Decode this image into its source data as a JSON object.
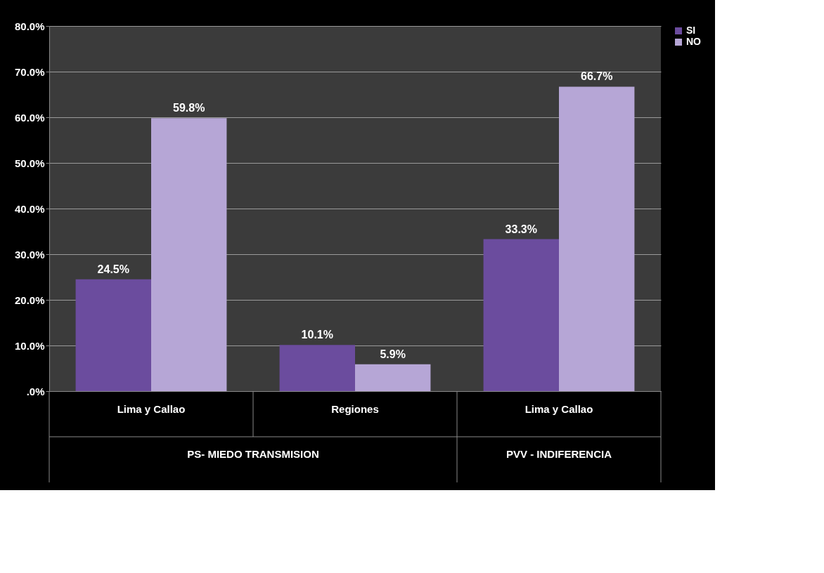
{
  "chart_data": {
    "type": "bar",
    "categories": [
      "Lima y Callao",
      "Regiones",
      "Lima y Callao"
    ],
    "series": [
      {
        "name": "SI",
        "color": "#6b4c9e",
        "values": [
          24.5,
          10.1,
          33.3
        ],
        "value_labels": [
          "24.5%",
          "10.1%",
          "33.3%"
        ]
      },
      {
        "name": "NO",
        "color": "#b6a6d6",
        "values": [
          59.8,
          5.9,
          66.7
        ],
        "value_labels": [
          "59.8%",
          "5.9%",
          "66.7%"
        ]
      }
    ],
    "ylim": [
      0,
      80
    ],
    "yticks": [
      {
        "value": 0,
        "label": ".0%"
      },
      {
        "value": 10,
        "label": "10.0%"
      },
      {
        "value": 20,
        "label": "20.0%"
      },
      {
        "value": 30,
        "label": "30.0%"
      },
      {
        "value": 40,
        "label": "40.0%"
      },
      {
        "value": 50,
        "label": "50.0%"
      },
      {
        "value": 60,
        "label": "60.0%"
      },
      {
        "value": 70,
        "label": "70.0%"
      },
      {
        "value": 80,
        "label": "80.0%"
      }
    ],
    "annotations": [
      "PS- MIEDO TRANSMISION",
      "PVV - INDIFERENCIA"
    ],
    "grid": "y",
    "legend": "right"
  }
}
